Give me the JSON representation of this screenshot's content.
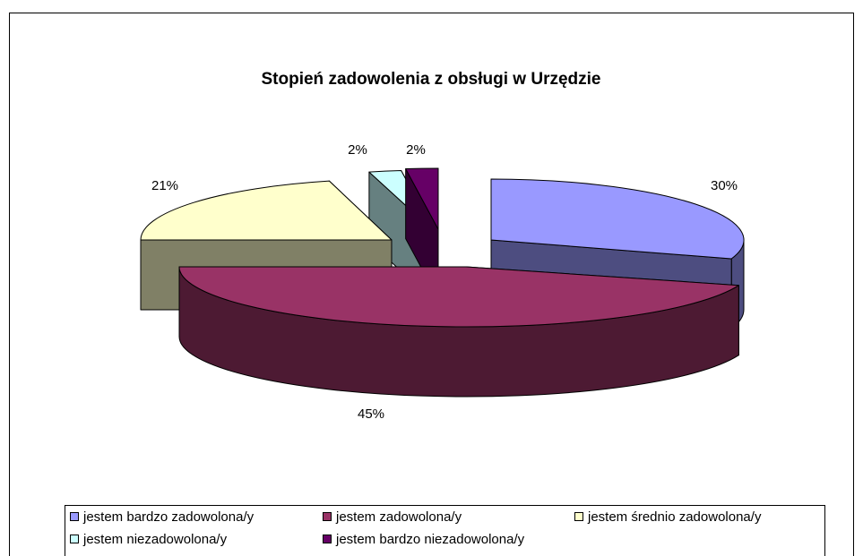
{
  "chart_data": {
    "type": "pie",
    "title": "Stopień zadowolenia z obsługi w Urzędzie",
    "categories": [
      "jestem bardzo zadowolona/y",
      "jestem zadowolona/y",
      "jestem średnio zadowolona/y",
      "jestem niezadowolona/y",
      "jestem bardzo niezadowolona/y"
    ],
    "values": [
      30,
      45,
      21,
      2,
      2
    ],
    "value_labels": [
      "30%",
      "45%",
      "21%",
      "2%",
      "2%"
    ],
    "colors": [
      "#9999ff",
      "#993366",
      "#ffffcc",
      "#ccffff",
      "#660066"
    ]
  }
}
